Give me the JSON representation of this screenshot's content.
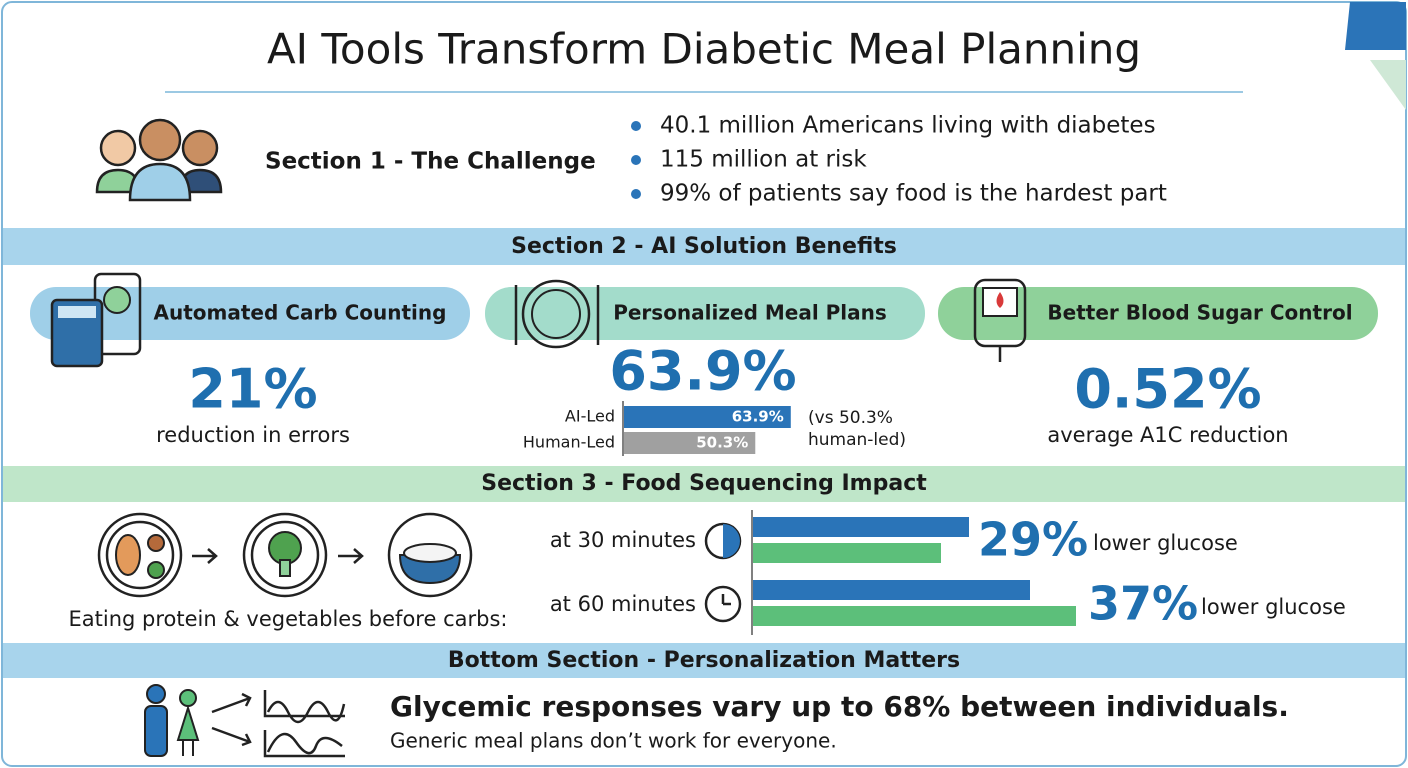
{
  "title": "AI Tools Transform Diabetic Meal Planning",
  "section1": {
    "heading": "Section 1 - The Challenge",
    "bullets": [
      "40.1 million Americans living with diabetes",
      "115 million at risk",
      "99% of patients say food is the hardest part"
    ]
  },
  "section2": {
    "heading": "Section 2 - AI Solution Benefits",
    "cards": [
      {
        "label": "Automated Carb Counting",
        "stat": "21%",
        "caption": "reduction in errors"
      },
      {
        "label": "Personalized Meal Plans",
        "stat": "63.9%",
        "note": [
          "(vs 50.3%",
          "human-led)"
        ],
        "bars": [
          {
            "name": "AI-Led",
            "value": 63.9,
            "value_label": "63.9%"
          },
          {
            "name": "Human-Led",
            "value": 50.3,
            "value_label": "50.3%"
          }
        ]
      },
      {
        "label": "Better Blood Sugar Control",
        "stat": "0.52%",
        "caption": "average A1C reduction"
      }
    ]
  },
  "section3": {
    "heading": "Section 3 - Food Sequencing Impact",
    "caption": "Eating protein & vegetables before carbs:",
    "rows": [
      {
        "time": "at 30 minutes",
        "stat": "29%",
        "text": "lower glucose"
      },
      {
        "time": "at 60 minutes",
        "stat": "37%",
        "text": "lower glucose"
      }
    ]
  },
  "section4": {
    "heading": "Bottom Section - Personalization Matters",
    "headline": "Glycemic responses vary up to 68% between individuals.",
    "subline": "Generic meal plans don’t work for everyone."
  }
}
